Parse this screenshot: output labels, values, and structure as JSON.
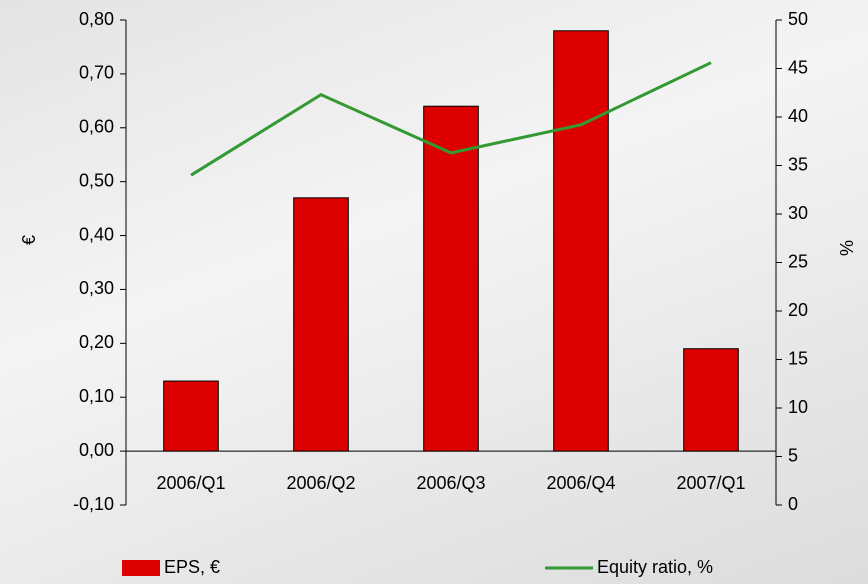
{
  "chart_data": {
    "type": "bar-line",
    "categories": [
      "2006/Q1",
      "2006/Q2",
      "2006/Q3",
      "2006/Q4",
      "2007/Q1"
    ],
    "series": [
      {
        "name": "EPS, €",
        "type": "bar",
        "color": "#dd0000",
        "values": [
          0.13,
          0.47,
          0.64,
          0.78,
          0.19
        ]
      },
      {
        "name": "Equity ratio, %",
        "type": "line",
        "axis": "y2",
        "color": "#339933",
        "values": [
          34,
          42.3,
          36.3,
          39.2,
          45.6
        ]
      }
    ],
    "ylabel": "€",
    "y2label": "%",
    "ylim": [
      -0.1,
      0.8
    ],
    "yticks": [
      {
        "value": -0.1,
        "label": "-0,10"
      },
      {
        "value": 0,
        "label": "0,00"
      },
      {
        "value": 0.1,
        "label": "0,10"
      },
      {
        "value": 0.2,
        "label": "0,20"
      },
      {
        "value": 0.3,
        "label": "0,30"
      },
      {
        "value": 0.4,
        "label": "0,40"
      },
      {
        "value": 0.5,
        "label": "0,50"
      },
      {
        "value": 0.6,
        "label": "0,60"
      },
      {
        "value": 0.7,
        "label": "0,70"
      },
      {
        "value": 0.8,
        "label": "0,80"
      }
    ],
    "y2lim": [
      0,
      50
    ],
    "y2ticks": [
      0,
      5,
      10,
      15,
      20,
      25,
      30,
      35,
      40,
      45,
      50
    ],
    "legend": "bottom"
  }
}
